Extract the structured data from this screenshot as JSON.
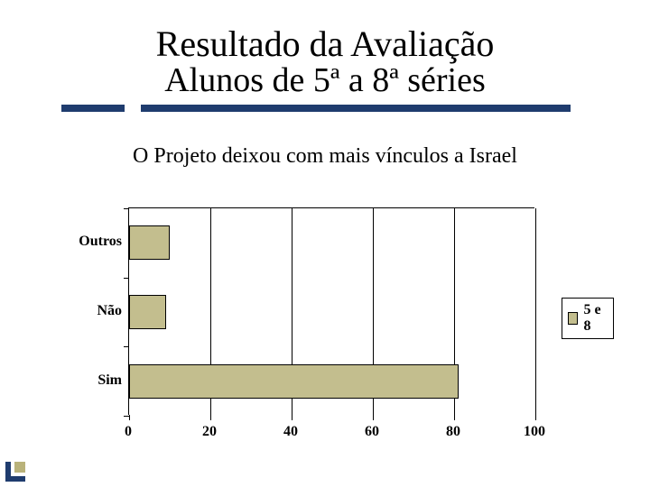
{
  "title_line1": "Resultado da Avaliação",
  "title_line2": "Alunos de 5ª a 8ª séries",
  "chart": {
    "type": "bar-horizontal",
    "title": "O Projeto deixou com mais vínculos a Israel",
    "title_fontsize": 24,
    "xlim": [
      0,
      100
    ],
    "xtick_step": 20,
    "xticks": [
      0,
      20,
      40,
      60,
      80,
      100
    ],
    "categories": [
      "Outros",
      "Não",
      "Sim"
    ],
    "values": [
      10,
      9,
      81
    ],
    "bar_color": "#c3be8e",
    "bar_border": "#000000",
    "axis_color": "#000000",
    "grid_color": "#000000",
    "background": "#ffffff",
    "label_fontsize": 16,
    "label_fontweight": "bold",
    "legend": {
      "label": "5 e 8",
      "swatch": "#c3be8e",
      "position": "right"
    }
  },
  "accent_color": "#1f3c6e"
}
